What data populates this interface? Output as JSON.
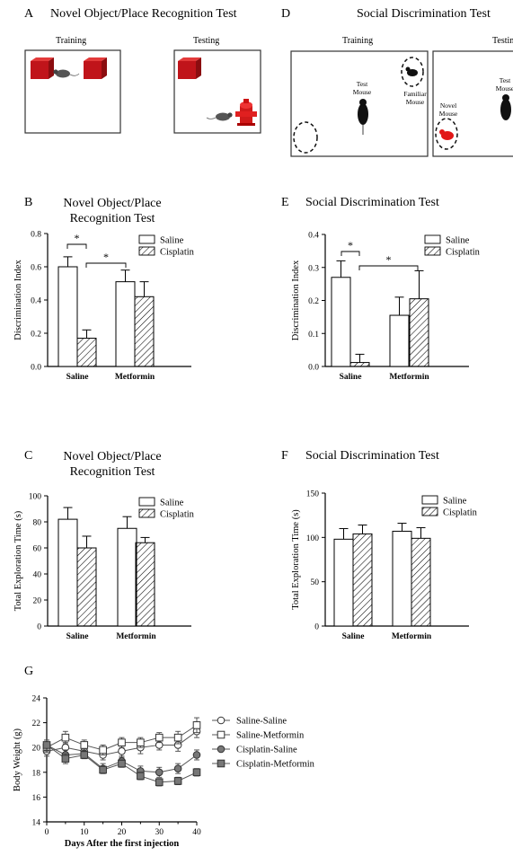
{
  "panels": {
    "a": {
      "letter": "A",
      "title": "Novel Object/Place Recognition Test",
      "training": "Training",
      "testing": "Testing"
    },
    "d": {
      "letter": "D",
      "title": "Social Discrimination Test",
      "training": "Training",
      "testing": "Testin",
      "test_mouse": "Test Mouse",
      "familiar_mouse": "Familiar Mouse",
      "novel_mouse": "Novel Mouse",
      "test_mouse2": "Test Mouse"
    },
    "b": {
      "letter": "B",
      "title": "Novel Object/Place Recognition Test"
    },
    "e": {
      "letter": "E",
      "title": "Social Discrimination Test"
    },
    "c": {
      "letter": "C",
      "title": "Novel Object/Place Recognition Test"
    },
    "f": {
      "letter": "F",
      "title": "Social Discrimination Test"
    },
    "g": {
      "letter": "G"
    }
  },
  "chart_data": [
    {
      "id": "B",
      "type": "bar",
      "categories": [
        "Saline",
        "Metformin"
      ],
      "series": [
        {
          "name": "Saline",
          "values": [
            0.6,
            0.51
          ],
          "errors": [
            0.06,
            0.07
          ]
        },
        {
          "name": "Cisplatin",
          "values": [
            0.17,
            0.42
          ],
          "errors": [
            0.05,
            0.09
          ]
        }
      ],
      "ylabel": "Discrimination Index",
      "ylim": [
        0,
        0.8
      ],
      "yticks": [
        "0.0",
        "0.2",
        "0.4",
        "0.6",
        "0.8"
      ],
      "significance": [
        "*",
        "*"
      ]
    },
    {
      "id": "E",
      "type": "bar",
      "categories": [
        "Saline",
        "Metformin"
      ],
      "series": [
        {
          "name": "Saline",
          "values": [
            0.27,
            0.155
          ],
          "errors": [
            0.05,
            0.055
          ]
        },
        {
          "name": "Cisplatin",
          "values": [
            0.012,
            0.205
          ],
          "errors": [
            0.025,
            0.085
          ]
        }
      ],
      "ylabel": "Discrimination Index",
      "ylim": [
        0,
        0.4
      ],
      "yticks": [
        "0.0",
        "0.1",
        "0.2",
        "0.3",
        "0.4"
      ],
      "significance": [
        "*",
        "*"
      ]
    },
    {
      "id": "C",
      "type": "bar",
      "categories": [
        "Saline",
        "Metformin"
      ],
      "series": [
        {
          "name": "Saline",
          "values": [
            82,
            75
          ],
          "errors": [
            9,
            9
          ]
        },
        {
          "name": "Cisplatin",
          "values": [
            60,
            64
          ],
          "errors": [
            9,
            4
          ]
        }
      ],
      "ylabel": "Total Exploration  Time (s)",
      "ylim": [
        0,
        100
      ],
      "yticks": [
        "0",
        "20",
        "40",
        "60",
        "80",
        "100"
      ]
    },
    {
      "id": "F",
      "type": "bar",
      "categories": [
        "Saline",
        "Metformin"
      ],
      "series": [
        {
          "name": "Saline",
          "values": [
            98,
            107
          ],
          "errors": [
            12,
            9
          ]
        },
        {
          "name": "Cisplatin",
          "values": [
            104,
            99
          ],
          "errors": [
            10,
            12
          ]
        }
      ],
      "ylabel": "Total Exploration  Time (s)",
      "ylim": [
        0,
        150
      ],
      "yticks": [
        "0",
        "50",
        "100",
        "150"
      ]
    },
    {
      "id": "G",
      "type": "line",
      "x": [
        0,
        5,
        10,
        15,
        20,
        25,
        30,
        35,
        40
      ],
      "series": [
        {
          "name": "Saline-Saline",
          "values": [
            19.7,
            20.0,
            19.7,
            19.4,
            19.7,
            20.0,
            20.2,
            20.2,
            21.3
          ],
          "errors": [
            0.4,
            0.4,
            0.4,
            0.4,
            0.5,
            0.5,
            0.4,
            0.5,
            0.5
          ]
        },
        {
          "name": "Saline-Metformin",
          "values": [
            20.0,
            20.8,
            20.2,
            19.8,
            20.4,
            20.4,
            20.8,
            20.8,
            21.8
          ],
          "errors": [
            0.4,
            0.5,
            0.4,
            0.4,
            0.4,
            0.4,
            0.4,
            0.5,
            0.6
          ]
        },
        {
          "name": "Cisplatin-Saline",
          "values": [
            20.2,
            19.4,
            19.5,
            18.3,
            18.9,
            18.1,
            18.0,
            18.3,
            19.4
          ],
          "errors": [
            0.4,
            0.4,
            0.4,
            0.4,
            0.4,
            0.4,
            0.4,
            0.4,
            0.4
          ]
        },
        {
          "name": "Cisplatin-Metformin",
          "values": [
            20.2,
            19.1,
            19.4,
            18.2,
            18.7,
            17.7,
            17.2,
            17.3,
            18.0
          ],
          "errors": [
            0.4,
            0.4,
            0.3,
            0.3,
            0.3,
            0.3,
            0.3,
            0.3,
            0.3
          ]
        }
      ],
      "xlabel": "Days After the first injection",
      "ylabel": "Body Weight (g)",
      "xlim": [
        0,
        40
      ],
      "ylim": [
        14,
        24
      ],
      "xticks": [
        "0",
        "10",
        "20",
        "30",
        "40"
      ],
      "yticks": [
        "14",
        "16",
        "18",
        "20",
        "22",
        "24"
      ],
      "legend": "right"
    }
  ]
}
